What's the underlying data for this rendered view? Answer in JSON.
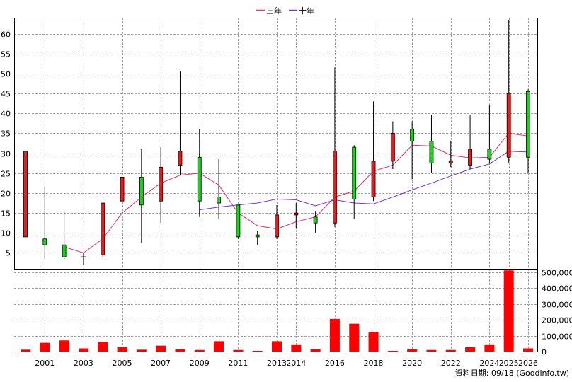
{
  "chart_data": {
    "type": "candlestick+bar",
    "legend": [
      {
        "name": "三年",
        "color": "#e0306f"
      },
      {
        "name": "十年",
        "color": "#7a35c9"
      }
    ],
    "price_axis": {
      "ylim": [
        1,
        64
      ],
      "ticks": [
        5,
        10,
        15,
        20,
        25,
        30,
        35,
        40,
        45,
        50,
        55,
        60
      ],
      "side": "left",
      "grid": true
    },
    "volume_axis": {
      "ylim": [
        0,
        520000
      ],
      "ticks": [
        0,
        100000,
        200000,
        300000,
        400000,
        500000
      ],
      "tick_labels": [
        "0",
        "100,000",
        "200,000",
        "300,000",
        "400,000",
        "500,000"
      ],
      "side": "right",
      "grid": true
    },
    "x_tick_labels": [
      "2001",
      "2003",
      "2005",
      "2007",
      "2009",
      "2011",
      "2013",
      "2014",
      "2016",
      "2018",
      "2020",
      "2022",
      "2024",
      "2025",
      "2026"
    ],
    "x_tick_years": [
      2001,
      2003,
      2005,
      2007,
      2009,
      2011,
      2013,
      2014,
      2016,
      2018,
      2020,
      2022,
      2024,
      2025,
      2026
    ],
    "candles": [
      {
        "year": 2000,
        "open": 9,
        "close": 30.5,
        "high": 30.5,
        "low": 9
      },
      {
        "year": 2001,
        "open": 8.5,
        "close": 7,
        "high": 21.5,
        "low": 3.5
      },
      {
        "year": 2002,
        "open": 7,
        "close": 4,
        "high": 15.5,
        "low": 3.5
      },
      {
        "year": 2003,
        "open": 4,
        "close": 4,
        "high": 5,
        "low": 2
      },
      {
        "year": 2004,
        "open": 4.5,
        "close": 17.5,
        "high": 17.5,
        "low": 4
      },
      {
        "year": 2005,
        "open": 18,
        "close": 24,
        "high": 29,
        "low": 13
      },
      {
        "year": 2006,
        "open": 24,
        "close": 17,
        "high": 31,
        "low": 7.5
      },
      {
        "year": 2007,
        "open": 18,
        "close": 26.5,
        "high": 31.5,
        "low": 12.5
      },
      {
        "year": 2008,
        "open": 27,
        "close": 30.5,
        "high": 50.5,
        "low": 24.5
      },
      {
        "year": 2009,
        "open": 29,
        "close": 18,
        "high": 36,
        "low": 14
      },
      {
        "year": 2010,
        "open": 19,
        "close": 17.5,
        "high": 28.5,
        "low": 13.5
      },
      {
        "year": 2011,
        "open": 17,
        "close": 9,
        "high": 17,
        "low": 8.5
      },
      {
        "year": 2012,
        "open": 9.5,
        "close": 9,
        "high": 10.5,
        "low": 7
      },
      {
        "year": 2013,
        "open": 9,
        "close": 14.5,
        "high": 17,
        "low": 8.5
      },
      {
        "year": 2014,
        "open": 14.5,
        "close": 15,
        "high": 17.5,
        "low": 11
      },
      {
        "year": 2015,
        "open": 14,
        "close": 12.5,
        "high": 15.5,
        "low": 10
      },
      {
        "year": 2016,
        "open": 12.5,
        "close": 30.5,
        "high": 51.5,
        "low": 11.5
      },
      {
        "year": 2017,
        "open": 31.5,
        "close": 18.5,
        "high": 32,
        "low": 13.5
      },
      {
        "year": 2018,
        "open": 19,
        "close": 28,
        "high": 43,
        "low": 18
      },
      {
        "year": 2019,
        "open": 28,
        "close": 35,
        "high": 38,
        "low": 26
      },
      {
        "year": 2020,
        "open": 36,
        "close": 33,
        "high": 38,
        "low": 23.5
      },
      {
        "year": 2021,
        "open": 33,
        "close": 27.5,
        "high": 39.5,
        "low": 25
      },
      {
        "year": 2022,
        "open": 27.5,
        "close": 28,
        "high": 33,
        "low": 26.5
      },
      {
        "year": 2023,
        "open": 27,
        "close": 31,
        "high": 39.5,
        "low": 26
      },
      {
        "year": 2024,
        "open": 31,
        "close": 28.5,
        "high": 42,
        "low": 27.5
      },
      {
        "year": 2025,
        "open": 29,
        "close": 45,
        "high": 63.5,
        "low": 27.5
      },
      {
        "year": 2026,
        "open": 45.5,
        "close": 29,
        "high": 46,
        "low": 25
      }
    ],
    "volume": [
      {
        "year": 2000,
        "value": 12000
      },
      {
        "year": 2001,
        "value": 55000
      },
      {
        "year": 2002,
        "value": 70000
      },
      {
        "year": 2003,
        "value": 20000
      },
      {
        "year": 2004,
        "value": 60000
      },
      {
        "year": 2005,
        "value": 28000
      },
      {
        "year": 2006,
        "value": 12000
      },
      {
        "year": 2007,
        "value": 37000
      },
      {
        "year": 2008,
        "value": 15000
      },
      {
        "year": 2009,
        "value": 10000
      },
      {
        "year": 2010,
        "value": 65000
      },
      {
        "year": 2011,
        "value": 10000
      },
      {
        "year": 2012,
        "value": 5000
      },
      {
        "year": 2013,
        "value": 65000
      },
      {
        "year": 2014,
        "value": 45000
      },
      {
        "year": 2015,
        "value": 15000
      },
      {
        "year": 2016,
        "value": 205000
      },
      {
        "year": 2017,
        "value": 175000
      },
      {
        "year": 2018,
        "value": 120000
      },
      {
        "year": 2019,
        "value": 5000
      },
      {
        "year": 2020,
        "value": 15000
      },
      {
        "year": 2021,
        "value": 10000
      },
      {
        "year": 2022,
        "value": 10000
      },
      {
        "year": 2023,
        "value": 27000
      },
      {
        "year": 2024,
        "value": 45000
      },
      {
        "year": 2025,
        "value": 510000
      },
      {
        "year": 2026,
        "value": 20000
      }
    ],
    "ma3": [
      {
        "year": 2002,
        "value": 6.5
      },
      {
        "year": 2003,
        "value": 5
      },
      {
        "year": 2004,
        "value": 8.5
      },
      {
        "year": 2005,
        "value": 15
      },
      {
        "year": 2006,
        "value": 19
      },
      {
        "year": 2007,
        "value": 22.5
      },
      {
        "year": 2008,
        "value": 24.5
      },
      {
        "year": 2009,
        "value": 25
      },
      {
        "year": 2010,
        "value": 22
      },
      {
        "year": 2011,
        "value": 15
      },
      {
        "year": 2012,
        "value": 11.8
      },
      {
        "year": 2013,
        "value": 11
      },
      {
        "year": 2014,
        "value": 12.8
      },
      {
        "year": 2015,
        "value": 14
      },
      {
        "year": 2016,
        "value": 19
      },
      {
        "year": 2017,
        "value": 20.5
      },
      {
        "year": 2018,
        "value": 25.5
      },
      {
        "year": 2019,
        "value": 27
      },
      {
        "year": 2020,
        "value": 32
      },
      {
        "year": 2021,
        "value": 31.8
      },
      {
        "year": 2022,
        "value": 29.5
      },
      {
        "year": 2023,
        "value": 28.8
      },
      {
        "year": 2024,
        "value": 29
      },
      {
        "year": 2025,
        "value": 35
      },
      {
        "year": 2026,
        "value": 34.3
      }
    ],
    "ma10": [
      {
        "year": 2009,
        "value": 15.8
      },
      {
        "year": 2010,
        "value": 16.5
      },
      {
        "year": 2011,
        "value": 17
      },
      {
        "year": 2012,
        "value": 17.5
      },
      {
        "year": 2013,
        "value": 18.5
      },
      {
        "year": 2014,
        "value": 18.3
      },
      {
        "year": 2015,
        "value": 16.8
      },
      {
        "year": 2016,
        "value": 18.3
      },
      {
        "year": 2017,
        "value": 17.5
      },
      {
        "year": 2018,
        "value": 17.3
      },
      {
        "year": 2019,
        "value": 19
      },
      {
        "year": 2020,
        "value": 20.8
      },
      {
        "year": 2021,
        "value": 22.5
      },
      {
        "year": 2022,
        "value": 24.3
      },
      {
        "year": 2023,
        "value": 26
      },
      {
        "year": 2024,
        "value": 27.3
      },
      {
        "year": 2025,
        "value": 30.5
      },
      {
        "year": 2026,
        "value": 30.3
      }
    ],
    "colors": {
      "up": "#e02020",
      "down": "#22cc22",
      "volume": "#ff0000",
      "grid": "#a0a0a0",
      "wick": "#000000"
    }
  },
  "footer": {
    "date_label": "資料日期: 09/18  (Goodinfo.tw)"
  }
}
